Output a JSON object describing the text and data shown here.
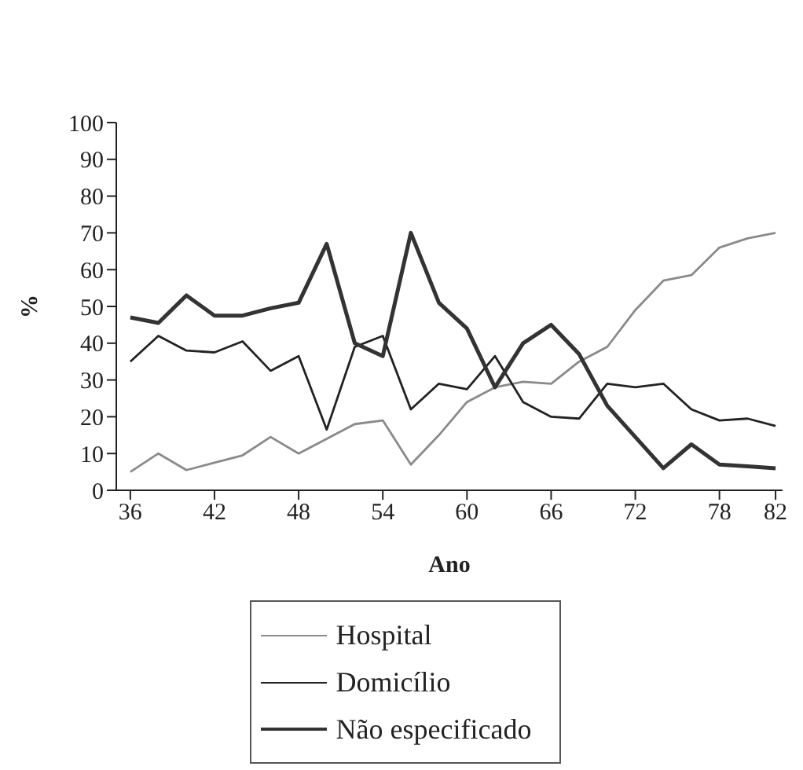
{
  "chart_data": {
    "type": "line",
    "xlabel": "Ano",
    "ylabel": "%",
    "x": [
      36,
      38,
      40,
      42,
      44,
      46,
      48,
      50,
      52,
      54,
      56,
      58,
      60,
      62,
      64,
      66,
      68,
      70,
      72,
      74,
      76,
      78,
      80,
      82
    ],
    "series": [
      {
        "name": "Hospital",
        "color": "#8a8a8a",
        "values": [
          5,
          10,
          5.5,
          7.5,
          9.5,
          14.5,
          10,
          14,
          18,
          19,
          7,
          15,
          24,
          28,
          29.5,
          29,
          35,
          39,
          49,
          57,
          58.5,
          66,
          68.5,
          70
        ]
      },
      {
        "name": "Domicílio",
        "color": "#222222",
        "values": [
          35,
          42,
          38,
          37.5,
          40.5,
          32.5,
          36.5,
          16.5,
          39,
          42,
          22,
          29,
          27.5,
          36.5,
          24,
          20,
          19.5,
          29,
          28,
          29,
          22,
          19,
          19.5,
          17.5
        ]
      },
      {
        "name": "Não especificado",
        "color": "#333333",
        "values": [
          47,
          45.5,
          53,
          47.5,
          47.5,
          49.5,
          51,
          67,
          40,
          36.5,
          70,
          51,
          44,
          28,
          40,
          45,
          37,
          23,
          14.5,
          6,
          12.5,
          7,
          6.5,
          6
        ]
      }
    ],
    "xlim": [
      35,
      82.5
    ],
    "xticks": [
      36,
      42,
      48,
      54,
      60,
      66,
      72,
      78,
      82
    ],
    "ylim": [
      0,
      100
    ],
    "yticks": [
      0,
      10,
      20,
      30,
      40,
      50,
      60,
      70,
      80,
      90,
      100
    ],
    "legend": "bottom",
    "marker": "none",
    "line_style": "solid"
  }
}
